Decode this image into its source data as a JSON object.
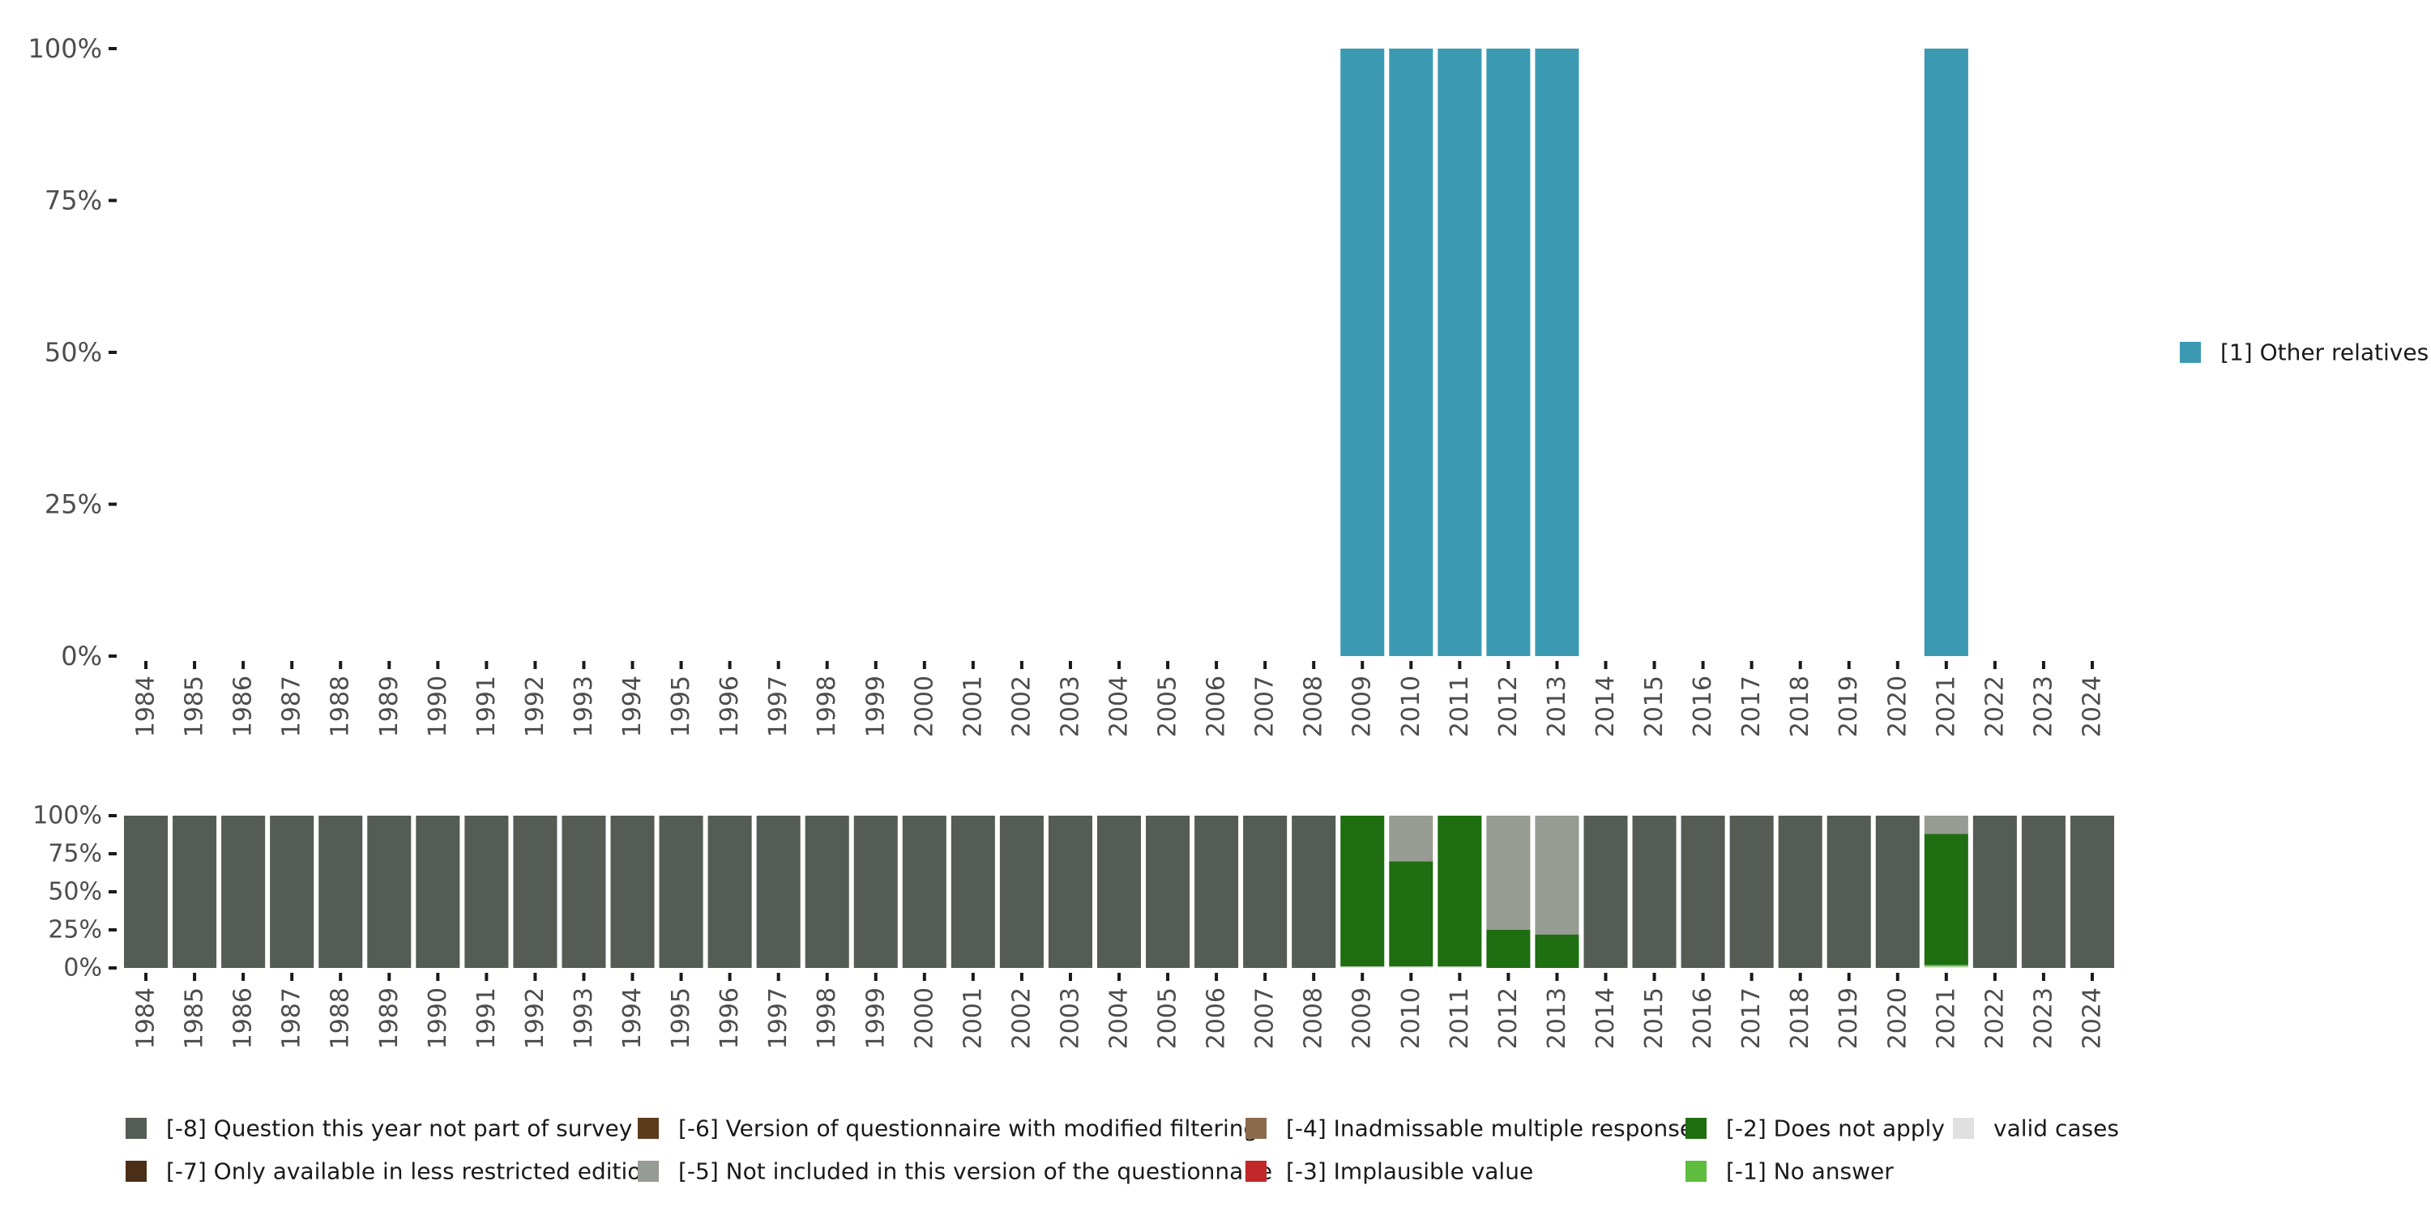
{
  "chart_data": [
    {
      "type": "bar",
      "stacked": true,
      "categories": [
        "1984",
        "1985",
        "1986",
        "1987",
        "1988",
        "1989",
        "1990",
        "1991",
        "1992",
        "1993",
        "1994",
        "1995",
        "1996",
        "1997",
        "1998",
        "1999",
        "2000",
        "2001",
        "2002",
        "2003",
        "2004",
        "2005",
        "2006",
        "2007",
        "2008",
        "2009",
        "2010",
        "2011",
        "2012",
        "2013",
        "2014",
        "2015",
        "2016",
        "2017",
        "2018",
        "2019",
        "2020",
        "2021",
        "2022",
        "2023",
        "2024"
      ],
      "y_ticks": [
        "0%",
        "25%",
        "50%",
        "75%",
        "100%"
      ],
      "ylim": [
        0,
        100
      ],
      "grid": false,
      "legend_position": "right",
      "series": [
        {
          "name": "[1] Other relatives",
          "color": "#3b9ab2",
          "values": [
            0,
            0,
            0,
            0,
            0,
            0,
            0,
            0,
            0,
            0,
            0,
            0,
            0,
            0,
            0,
            0,
            0,
            0,
            0,
            0,
            0,
            0,
            0,
            0,
            0,
            100,
            100,
            100,
            100,
            100,
            0,
            0,
            0,
            0,
            0,
            0,
            0,
            100,
            0,
            0,
            0
          ]
        }
      ]
    },
    {
      "type": "bar",
      "stacked": true,
      "categories": [
        "1984",
        "1985",
        "1986",
        "1987",
        "1988",
        "1989",
        "1990",
        "1991",
        "1992",
        "1993",
        "1994",
        "1995",
        "1996",
        "1997",
        "1998",
        "1999",
        "2000",
        "2001",
        "2002",
        "2003",
        "2004",
        "2005",
        "2006",
        "2007",
        "2008",
        "2009",
        "2010",
        "2011",
        "2012",
        "2013",
        "2014",
        "2015",
        "2016",
        "2017",
        "2018",
        "2019",
        "2020",
        "2021",
        "2022",
        "2023",
        "2024"
      ],
      "y_ticks": [
        "0%",
        "25%",
        "50%",
        "75%",
        "100%"
      ],
      "ylim": [
        0,
        100
      ],
      "grid": false,
      "legend_position": "bottom",
      "series": [
        {
          "name": "valid cases",
          "color": "#e0e0e0",
          "values": [
            0,
            0,
            0,
            0,
            0,
            0,
            0,
            0,
            0,
            0,
            0,
            0,
            0,
            0,
            0,
            0,
            0,
            0,
            0,
            0,
            0,
            0,
            0,
            0,
            0,
            1,
            1,
            1,
            0,
            0,
            0,
            0,
            0,
            0,
            0,
            0,
            0,
            1,
            0,
            0,
            0
          ]
        },
        {
          "name": "[-1] No answer",
          "color": "#5ebd3e",
          "values": [
            0,
            0,
            0,
            0,
            0,
            0,
            0,
            0,
            0,
            0,
            0,
            0,
            0,
            0,
            0,
            0,
            0,
            0,
            0,
            0,
            0,
            0,
            0,
            0,
            0,
            0,
            0,
            0,
            0,
            0,
            0,
            0,
            0,
            0,
            0,
            0,
            0,
            1,
            0,
            0,
            0
          ]
        },
        {
          "name": "[-2] Does not apply",
          "color": "#1f6e11",
          "values": [
            0,
            0,
            0,
            0,
            0,
            0,
            0,
            0,
            0,
            0,
            0,
            0,
            0,
            0,
            0,
            0,
            0,
            0,
            0,
            0,
            0,
            0,
            0,
            0,
            0,
            99,
            69,
            99,
            25,
            22,
            0,
            0,
            0,
            0,
            0,
            0,
            0,
            86,
            0,
            0,
            0
          ]
        },
        {
          "name": "[-3] Implausible value",
          "color": "#c0282a",
          "values": [
            0,
            0,
            0,
            0,
            0,
            0,
            0,
            0,
            0,
            0,
            0,
            0,
            0,
            0,
            0,
            0,
            0,
            0,
            0,
            0,
            0,
            0,
            0,
            0,
            0,
            0,
            0,
            0,
            0,
            0,
            0,
            0,
            0,
            0,
            0,
            0,
            0,
            0,
            0,
            0,
            0
          ]
        },
        {
          "name": "[-4] Inadmissable multiple response",
          "color": "#8b6a4e",
          "values": [
            0,
            0,
            0,
            0,
            0,
            0,
            0,
            0,
            0,
            0,
            0,
            0,
            0,
            0,
            0,
            0,
            0,
            0,
            0,
            0,
            0,
            0,
            0,
            0,
            0,
            0,
            0,
            0,
            0,
            0,
            0,
            0,
            0,
            0,
            0,
            0,
            0,
            0,
            0,
            0,
            0
          ]
        },
        {
          "name": "[-5] Not included in this version of the questionnaire",
          "color": "#969b93",
          "values": [
            0,
            0,
            0,
            0,
            0,
            0,
            0,
            0,
            0,
            0,
            0,
            0,
            0,
            0,
            0,
            0,
            0,
            0,
            0,
            0,
            0,
            0,
            0,
            0,
            0,
            0,
            30,
            0,
            75,
            78,
            0,
            0,
            0,
            0,
            0,
            0,
            0,
            12,
            0,
            0,
            0
          ]
        },
        {
          "name": "[-6] Version of questionnaire with modified filtering",
          "color": "#5a3b1a",
          "values": [
            0,
            0,
            0,
            0,
            0,
            0,
            0,
            0,
            0,
            0,
            0,
            0,
            0,
            0,
            0,
            0,
            0,
            0,
            0,
            0,
            0,
            0,
            0,
            0,
            0,
            0,
            0,
            0,
            0,
            0,
            0,
            0,
            0,
            0,
            0,
            0,
            0,
            0,
            0,
            0,
            0
          ]
        },
        {
          "name": "[-7] Only available in less restricted edition",
          "color": "#4a2e17",
          "values": [
            0,
            0,
            0,
            0,
            0,
            0,
            0,
            0,
            0,
            0,
            0,
            0,
            0,
            0,
            0,
            0,
            0,
            0,
            0,
            0,
            0,
            0,
            0,
            0,
            0,
            0,
            0,
            0,
            0,
            0,
            0,
            0,
            0,
            0,
            0,
            0,
            0,
            0,
            0,
            0,
            0
          ]
        },
        {
          "name": "[-8] Question this year not part of survey",
          "color": "#555b55",
          "values": [
            100,
            100,
            100,
            100,
            100,
            100,
            100,
            100,
            100,
            100,
            100,
            100,
            100,
            100,
            100,
            100,
            100,
            100,
            100,
            100,
            100,
            100,
            100,
            100,
            100,
            0,
            0,
            0,
            0,
            0,
            100,
            100,
            100,
            100,
            100,
            100,
            100,
            0,
            100,
            100,
            100
          ]
        }
      ]
    }
  ],
  "legend_bottom_order": [
    "[-8] Question this year not part of survey",
    "[-7] Only available in less restricted edition",
    "[-6] Version of questionnaire with modified filtering",
    "[-5] Not included in this version of the questionnaire",
    "[-4] Inadmissable multiple response",
    "[-3] Implausible value",
    "[-2] Does not apply",
    "[-1] No answer",
    "valid cases"
  ]
}
